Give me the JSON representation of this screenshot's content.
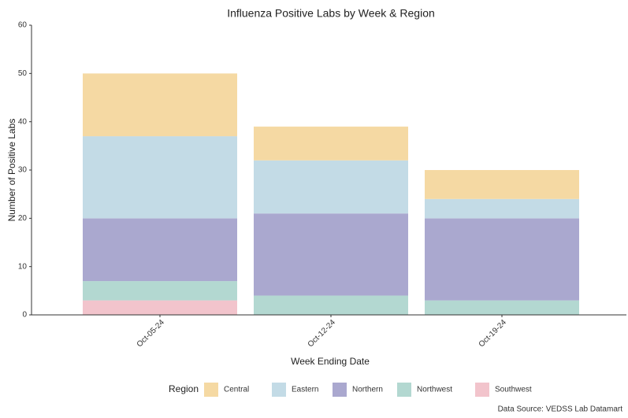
{
  "chart_data": {
    "type": "stacked_bar",
    "title": "Influenza Positive Labs by Week & Region",
    "x_label": "Week Ending Date",
    "y_label": "Number of Positive Labs",
    "legend_title": "Region",
    "caption": "Data Source: VEDSS Lab Datamart",
    "categories": [
      "Oct-05-24",
      "Oct-12-24",
      "Oct-19-24"
    ],
    "series": [
      {
        "name": "Central",
        "color": "#f5d9a3",
        "values": [
          13,
          7,
          6
        ]
      },
      {
        "name": "Eastern",
        "color": "#c3dbe6",
        "values": [
          17,
          11,
          4
        ]
      },
      {
        "name": "Northern",
        "color": "#aaa8cf",
        "values": [
          13,
          17,
          17
        ]
      },
      {
        "name": "Northwest",
        "color": "#b3d8d1",
        "values": [
          4,
          4,
          3
        ]
      },
      {
        "name": "Southwest",
        "color": "#f2c4cc",
        "values": [
          3,
          0,
          0
        ]
      }
    ],
    "ylim": [
      0,
      60
    ],
    "yticks": [
      0,
      10,
      20,
      30,
      40,
      50,
      60
    ],
    "grid": false
  }
}
